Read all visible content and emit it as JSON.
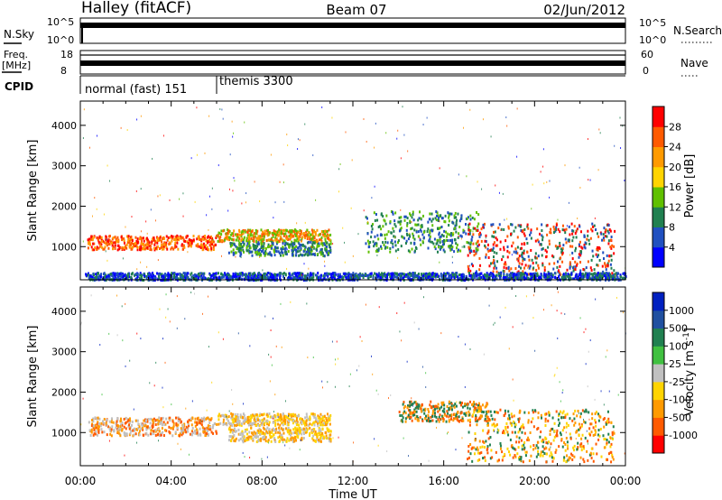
{
  "header": {
    "station": "Halley (fitACF)",
    "beam": "Beam 07",
    "date": "02/Jun/2012"
  },
  "summary_panels": {
    "nsky": {
      "label": "N.Sky",
      "ticks": [
        "10^5",
        "10^0"
      ]
    },
    "nsearch": {
      "label": "N.Search",
      "ticks": [
        "10^5",
        "10^0"
      ]
    },
    "freq": {
      "label_line1": "Freq.",
      "label_line2": "[MHz]",
      "ticks": [
        "18",
        "8"
      ]
    },
    "nave": {
      "label": "Nave",
      "ticks": [
        "60",
        "0"
      ]
    },
    "cpid": {
      "label": "CPID",
      "segments": [
        {
          "name": "normal (fast) 151",
          "start_hour": 0
        },
        {
          "name": "themis 3300",
          "start_hour": 6
        }
      ]
    }
  },
  "chart_data": [
    {
      "type": "heatmap",
      "title": "",
      "quantity": "Power",
      "xlabel": "Time UT",
      "ylabel": "Slant Range [km]",
      "xlim_hours": [
        0,
        24
      ],
      "ylim_km": [
        180,
        4600
      ],
      "x_ticks": [
        "00:00",
        "04:00",
        "08:00",
        "12:00",
        "16:00",
        "20:00",
        "00:00"
      ],
      "y_ticks": [
        1000,
        2000,
        3000,
        4000
      ],
      "colorbar": {
        "label": "Power [dB]",
        "ticks": [
          "28",
          "24",
          "20",
          "16",
          "12",
          "8",
          "4"
        ],
        "colors": [
          "#ff0000",
          "#ff5a00",
          "#ff9a00",
          "#ffd400",
          "#60c000",
          "#208050",
          "#2050c0",
          "#0000ff"
        ]
      },
      "features": [
        {
          "desc": "backscatter band",
          "start_hour": 0.3,
          "end_hour": 10.5,
          "range_km": [
            900,
            1300
          ],
          "dominant_power_db": 22
        },
        {
          "desc": "backscatter band",
          "start_hour": 12.5,
          "end_hour": 23.5,
          "range_km": [
            300,
            1900
          ],
          "dominant_power_db": 14
        }
      ]
    },
    {
      "type": "heatmap",
      "title": "",
      "quantity": "Velocity",
      "xlabel": "Time UT",
      "ylabel": "Slant Range [km]",
      "xlim_hours": [
        0,
        24
      ],
      "ylim_km": [
        180,
        4600
      ],
      "x_ticks": [
        "00:00",
        "04:00",
        "08:00",
        "12:00",
        "16:00",
        "20:00",
        "00:00"
      ],
      "y_ticks": [
        1000,
        2000,
        3000,
        4000
      ],
      "colorbar": {
        "label": "Velocity [m s",
        "label_exponent": "-1",
        "label_close": "]",
        "ticks": [
          "1000",
          "500",
          "100",
          "25",
          "-25",
          "-100",
          "-500",
          "-1000"
        ],
        "colors": [
          "#0020c0",
          "#2050a0",
          "#208050",
          "#40c040",
          "#c0c0c0",
          "#ffd400",
          "#ff9a00",
          "#ff5a00",
          "#ff0000"
        ]
      }
    }
  ]
}
